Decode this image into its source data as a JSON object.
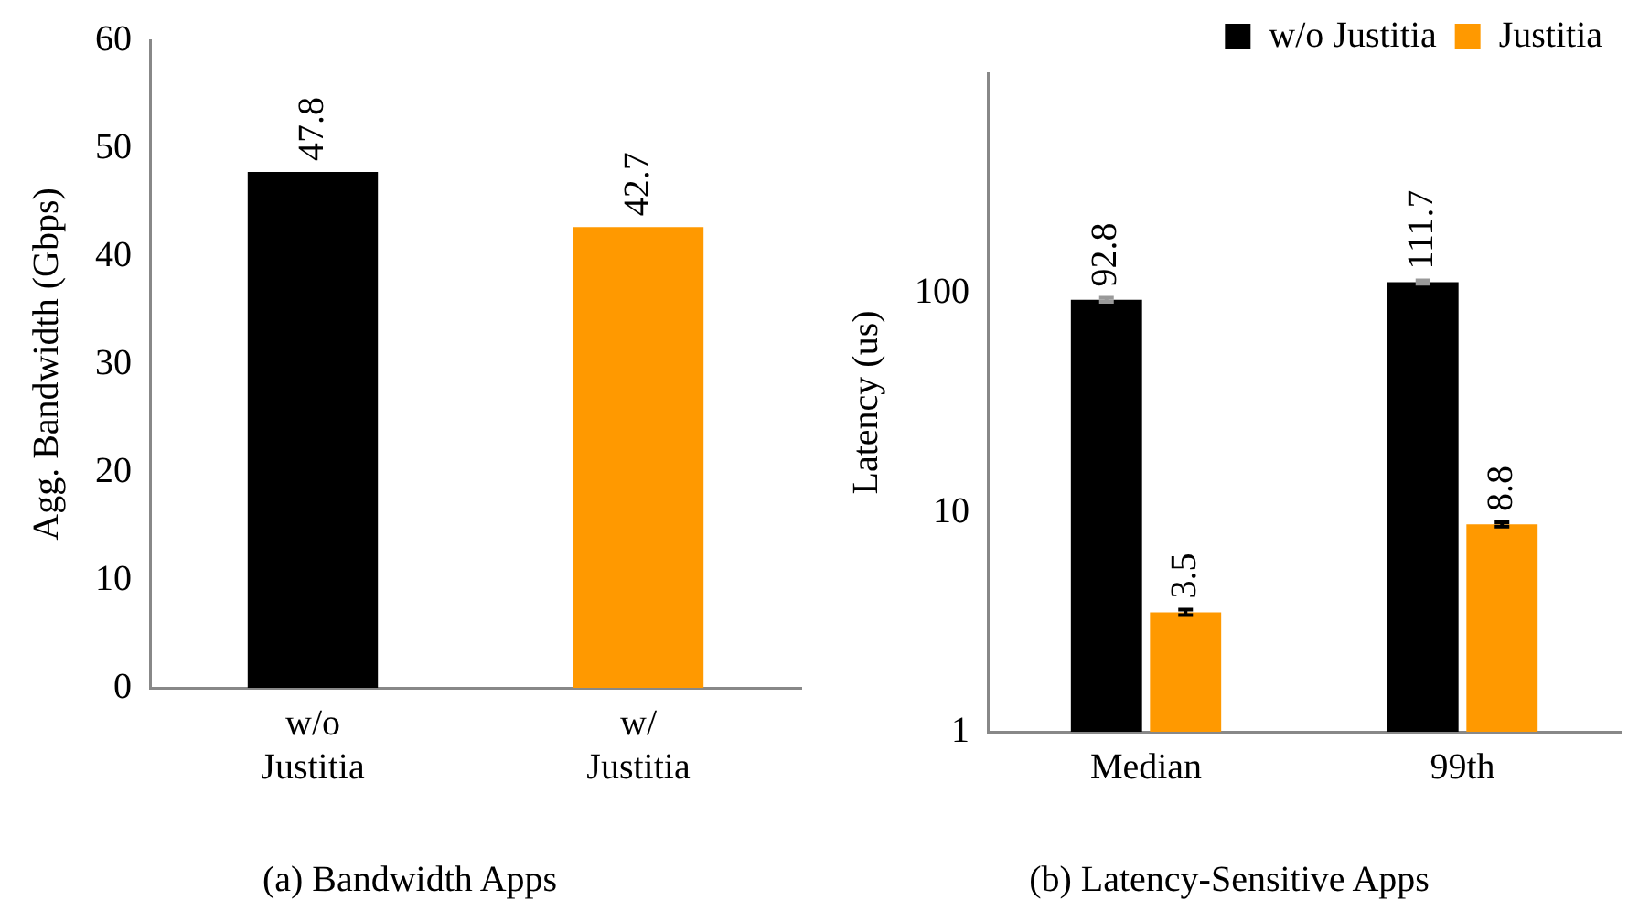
{
  "chart_data": [
    {
      "type": "bar",
      "ylabel": "Agg. Bandwidth (Gbps)",
      "categories": [
        "w/o Justitia",
        "w/ Justitia"
      ],
      "values": [
        47.8,
        42.7
      ],
      "colors": [
        "#000000",
        "#ff9900"
      ],
      "ylim": [
        0,
        60
      ],
      "yticks": [
        0,
        10,
        20,
        30,
        40,
        50,
        60
      ],
      "grid": false,
      "legend": false,
      "data_labels": true,
      "annotations": [
        "(a) Bandwidth Apps"
      ]
    },
    {
      "type": "bar",
      "ylabel": "Latency (us)",
      "categories": [
        "Median",
        "99th"
      ],
      "series": [
        {
          "name": "w/o Justitia",
          "color": "#000000",
          "values": [
            92.8,
            111.7
          ],
          "errors": [
            2,
            2
          ]
        },
        {
          "name": "Justitia",
          "color": "#ff9900",
          "values": [
            3.5,
            8.8
          ],
          "errors": [
            0.1,
            0.2
          ]
        }
      ],
      "log": "y",
      "ylim": [
        1,
        1000
      ],
      "yticks": [
        1,
        10,
        100
      ],
      "grid": false,
      "legend": "top right",
      "data_labels": true,
      "annotations": [
        "(b) Latency-Sensitive Apps"
      ]
    }
  ]
}
